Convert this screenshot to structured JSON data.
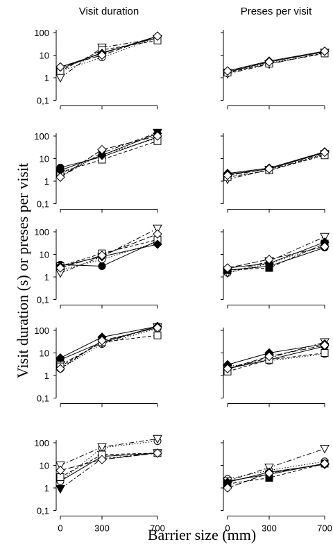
{
  "figure": {
    "ylabel": "Visit duration (s) or preses per visit",
    "xlabel": "Barrier size (mm)"
  },
  "chart_data": [
    {
      "type": "line",
      "title": "Visit duration",
      "panel_row": 1,
      "panel_col": 1,
      "x": [
        0,
        300,
        700
      ],
      "xticks": [
        "0",
        "300",
        "700"
      ],
      "yscale": "log",
      "ylim": [
        0.1,
        100
      ],
      "yticks": [
        "100",
        "10",
        "1",
        "0,1"
      ],
      "grid": false,
      "series": [
        {
          "marker": "circle-filled",
          "dash": "solid",
          "values": [
            2.5,
            13,
            60
          ]
        },
        {
          "marker": "circle-open",
          "dash": "dot",
          "values": [
            2,
            8,
            60
          ]
        },
        {
          "marker": "triangle-down-open",
          "dash": "dashdot",
          "values": [
            1,
            22,
            55
          ]
        },
        {
          "marker": "square-open",
          "dash": "dash",
          "values": [
            2,
            17,
            45
          ]
        },
        {
          "marker": "diamond-filled",
          "dash": "solid",
          "values": [
            3,
            12,
            70
          ]
        },
        {
          "marker": "diamond-open",
          "dash": "longdash",
          "values": [
            3,
            10,
            70
          ]
        }
      ]
    },
    {
      "type": "line",
      "title": "Preses per visit",
      "panel_row": 1,
      "panel_col": 2,
      "x": [
        0,
        300,
        700
      ],
      "xticks": [
        "0",
        "300",
        "700"
      ],
      "yscale": "log",
      "ylim": [
        0.1,
        100
      ],
      "yticks": [],
      "grid": false,
      "series": [
        {
          "marker": "circle-filled",
          "dash": "solid",
          "values": [
            1.8,
            5,
            14
          ]
        },
        {
          "marker": "circle-open",
          "dash": "dot",
          "values": [
            1.6,
            4.5,
            12
          ]
        },
        {
          "marker": "triangle-down-open",
          "dash": "dashdot",
          "values": [
            1.5,
            4,
            13
          ]
        },
        {
          "marker": "square-open",
          "dash": "dash",
          "values": [
            1.7,
            4.2,
            12
          ]
        },
        {
          "marker": "diamond-filled",
          "dash": "solid",
          "values": [
            2,
            5.5,
            15
          ]
        },
        {
          "marker": "diamond-open",
          "dash": "longdash",
          "values": [
            2,
            5,
            15
          ]
        }
      ]
    },
    {
      "type": "line",
      "panel_row": 2,
      "panel_col": 1,
      "x": [
        0,
        300,
        700
      ],
      "xticks": [
        "0",
        "300",
        "700"
      ],
      "yscale": "log",
      "ylim": [
        0.1,
        100
      ],
      "yticks": [
        "100",
        "10",
        "1",
        "0,1"
      ],
      "grid": false,
      "series": [
        {
          "marker": "circle-filled",
          "dash": "solid",
          "values": [
            4,
            12,
            90
          ]
        },
        {
          "marker": "circle-open",
          "dash": "dot",
          "values": [
            2,
            15,
            80
          ]
        },
        {
          "marker": "triangle-down-filled",
          "dash": "dashdot",
          "values": [
            1.5,
            18,
            140
          ]
        },
        {
          "marker": "square-open",
          "dash": "dash",
          "values": [
            2.5,
            9,
            60
          ]
        },
        {
          "marker": "diamond-filled",
          "dash": "solid",
          "values": [
            3,
            14,
            130
          ]
        },
        {
          "marker": "diamond-open",
          "dash": "longdash",
          "values": [
            1.5,
            25,
            100
          ]
        }
      ]
    },
    {
      "type": "line",
      "panel_row": 2,
      "panel_col": 2,
      "x": [
        0,
        300,
        700
      ],
      "xticks": [
        "0",
        "300",
        "700"
      ],
      "yscale": "log",
      "ylim": [
        0.1,
        100
      ],
      "yticks": [],
      "grid": false,
      "series": [
        {
          "marker": "circle-filled",
          "dash": "solid",
          "values": [
            2,
            3.5,
            18
          ]
        },
        {
          "marker": "circle-open",
          "dash": "dot",
          "values": [
            1.5,
            3,
            15
          ]
        },
        {
          "marker": "triangle-down-open",
          "dash": "dashdot",
          "values": [
            1.2,
            3.2,
            16
          ]
        },
        {
          "marker": "square-open",
          "dash": "dash",
          "values": [
            1.5,
            3,
            14
          ]
        },
        {
          "marker": "diamond-filled",
          "dash": "solid",
          "values": [
            2.2,
            3.8,
            20
          ]
        },
        {
          "marker": "diamond-open",
          "dash": "longdash",
          "values": [
            1.8,
            3.5,
            19
          ]
        }
      ]
    },
    {
      "type": "line",
      "panel_row": 3,
      "panel_col": 1,
      "x": [
        0,
        300,
        700
      ],
      "xticks": [
        "0",
        "300",
        "700"
      ],
      "yscale": "log",
      "ylim": [
        0.1,
        100
      ],
      "yticks": [
        "100",
        "10",
        "1",
        "0,1"
      ],
      "grid": false,
      "series": [
        {
          "marker": "circle-filled",
          "dash": "solid",
          "values": [
            3.5,
            3,
            40
          ]
        },
        {
          "marker": "circle-open",
          "dash": "dot",
          "values": [
            2,
            6,
            35
          ]
        },
        {
          "marker": "triangle-down-open",
          "dash": "dashdot",
          "values": [
            1.5,
            8,
            140
          ]
        },
        {
          "marker": "square-open",
          "dash": "dash",
          "values": [
            3,
            11,
            45
          ]
        },
        {
          "marker": "diamond-filled",
          "dash": "solid",
          "values": [
            3,
            8,
            28
          ]
        },
        {
          "marker": "diamond-open",
          "dash": "longdash",
          "values": [
            2.5,
            9,
            80
          ]
        }
      ]
    },
    {
      "type": "line",
      "panel_row": 3,
      "panel_col": 2,
      "x": [
        0,
        300,
        700
      ],
      "xticks": [
        "0",
        "300",
        "700"
      ],
      "yscale": "log",
      "ylim": [
        0.1,
        100
      ],
      "yticks": [],
      "grid": false,
      "series": [
        {
          "marker": "circle-filled",
          "dash": "solid",
          "values": [
            2,
            3,
            20
          ]
        },
        {
          "marker": "circle-open",
          "dash": "dot",
          "values": [
            1.5,
            4,
            25
          ]
        },
        {
          "marker": "triangle-down-open",
          "dash": "dashdot",
          "values": [
            1.5,
            5,
            60
          ]
        },
        {
          "marker": "square-filled",
          "dash": "dash",
          "values": [
            2,
            2.5,
            30
          ]
        },
        {
          "marker": "diamond-filled",
          "dash": "solid",
          "values": [
            2.5,
            4,
            35
          ]
        },
        {
          "marker": "diamond-open",
          "dash": "longdash",
          "values": [
            2.5,
            6,
            22
          ]
        }
      ]
    },
    {
      "type": "line",
      "panel_row": 4,
      "panel_col": 1,
      "x": [
        0,
        300,
        700
      ],
      "xticks": [
        "0",
        "300",
        "700"
      ],
      "yscale": "log",
      "ylim": [
        0.1,
        100
      ],
      "yticks": [
        "100",
        "10",
        "1",
        "0,1"
      ],
      "grid": false,
      "series": [
        {
          "marker": "circle-filled",
          "dash": "solid",
          "values": [
            5,
            30,
            150
          ]
        },
        {
          "marker": "circle-open",
          "dash": "dot",
          "values": [
            2,
            25,
            120
          ]
        },
        {
          "marker": "triangle-down-open",
          "dash": "dashdot",
          "values": [
            3,
            28,
            140
          ]
        },
        {
          "marker": "square-open",
          "dash": "dash",
          "values": [
            2.5,
            30,
            60
          ]
        },
        {
          "marker": "diamond-filled",
          "dash": "solid",
          "values": [
            6,
            50,
            150
          ]
        },
        {
          "marker": "diamond-open",
          "dash": "longdash",
          "values": [
            2,
            35,
            130
          ]
        }
      ]
    },
    {
      "type": "line",
      "panel_row": 4,
      "panel_col": 2,
      "x": [
        0,
        300,
        700
      ],
      "xticks": [
        "0",
        "300",
        "700"
      ],
      "yscale": "log",
      "ylim": [
        0.1,
        100
      ],
      "yticks": [],
      "grid": false,
      "series": [
        {
          "marker": "circle-filled",
          "dash": "solid",
          "values": [
            2,
            5,
            20
          ]
        },
        {
          "marker": "circle-open",
          "dash": "dot",
          "values": [
            2.5,
            4.5,
            9
          ]
        },
        {
          "marker": "triangle-down-open",
          "dash": "dashdot",
          "values": [
            2,
            6,
            30
          ]
        },
        {
          "marker": "square-open",
          "dash": "dash",
          "values": [
            1.5,
            5,
            10
          ]
        },
        {
          "marker": "diamond-filled",
          "dash": "solid",
          "values": [
            3,
            10,
            25
          ]
        },
        {
          "marker": "diamond-open",
          "dash": "longdash",
          "values": [
            2,
            7,
            22
          ]
        }
      ]
    },
    {
      "type": "line",
      "panel_row": 5,
      "panel_col": 1,
      "x": [
        0,
        300,
        700
      ],
      "xticks": [
        "0",
        "300",
        "700"
      ],
      "yscale": "log",
      "ylim": [
        0.1,
        100
      ],
      "yticks": [
        "100",
        "10",
        "1",
        "0,1"
      ],
      "grid": false,
      "series": [
        {
          "marker": "circle-filled",
          "dash": "solid",
          "values": [
            2,
            25,
            35
          ]
        },
        {
          "marker": "circle-open",
          "dash": "dot",
          "values": [
            2,
            60,
            120
          ]
        },
        {
          "marker": "triangle-down-filled",
          "dash": "dashdot",
          "values": [
            0.9,
            20,
            35
          ]
        },
        {
          "marker": "triangle-down-open",
          "dash": "dashdot",
          "values": [
            10,
            65,
            150
          ]
        },
        {
          "marker": "square-open",
          "dash": "dash",
          "values": [
            3,
            30,
            35
          ]
        },
        {
          "marker": "diamond-open",
          "dash": "longdash",
          "values": [
            6,
            18,
            35
          ]
        }
      ]
    },
    {
      "type": "line",
      "panel_row": 5,
      "panel_col": 2,
      "x": [
        0,
        300,
        700
      ],
      "xticks": [
        "0",
        "300",
        "700"
      ],
      "yscale": "log",
      "ylim": [
        0.1,
        100
      ],
      "yticks": [],
      "grid": false,
      "series": [
        {
          "marker": "circle-filled",
          "dash": "solid",
          "values": [
            2,
            4,
            12
          ]
        },
        {
          "marker": "circle-open",
          "dash": "dot",
          "values": [
            2.5,
            6,
            15
          ]
        },
        {
          "marker": "triangle-down-open",
          "dash": "dashdot",
          "values": [
            2,
            8,
            55
          ]
        },
        {
          "marker": "square-filled",
          "dash": "dash",
          "values": [
            1.5,
            2.8,
            12
          ]
        },
        {
          "marker": "diamond-filled",
          "dash": "solid",
          "values": [
            1.8,
            5,
            11
          ]
        },
        {
          "marker": "diamond-open",
          "dash": "longdash",
          "values": [
            1,
            4.5,
            12
          ]
        }
      ]
    }
  ]
}
